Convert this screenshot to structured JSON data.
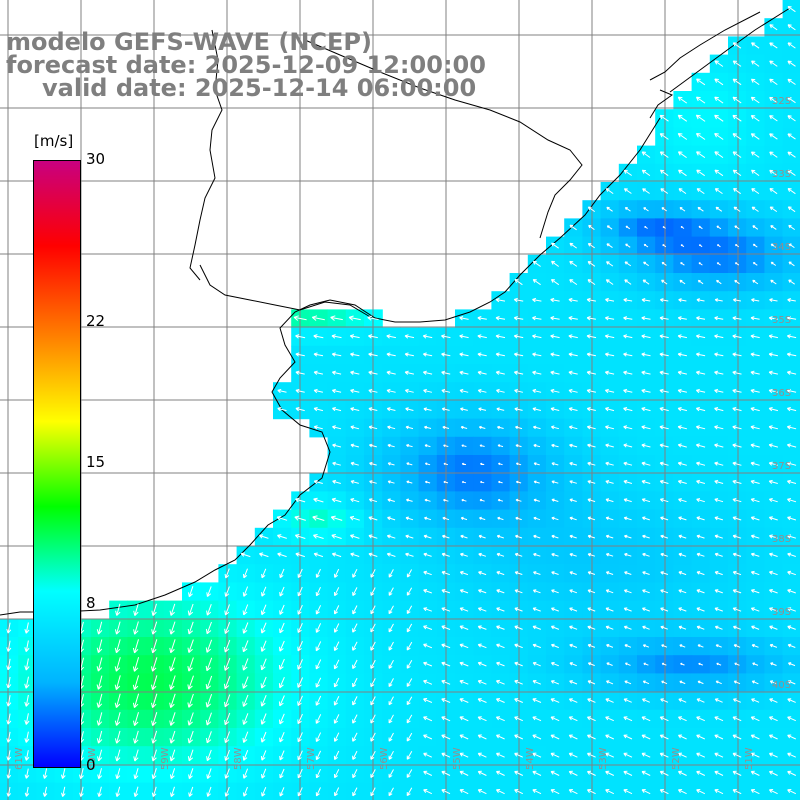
{
  "header": {
    "model": "modelo GEFS-WAVE (NCEP)",
    "forecast": "forecast date: 2025-12-09 12:00:00",
    "valid": "valid date: 2025-12-14 06:00:00"
  },
  "colorbar": {
    "units": "[m/s]",
    "min": 0,
    "max": 30,
    "ticks": [
      {
        "value": 30,
        "label": "30"
      },
      {
        "value": 22,
        "label": "22"
      },
      {
        "value": 15,
        "label": "15"
      },
      {
        "value": 8,
        "label": "8"
      },
      {
        "value": 0,
        "label": "0"
      }
    ],
    "colors": [
      "#0000ff",
      "#00b4ff",
      "#00ffff",
      "#00ff00",
      "#ffff00",
      "#ff8000",
      "#ff0000",
      "#c80080"
    ]
  },
  "lat_labels": [
    "32S",
    "33S",
    "34S",
    "35S",
    "36S",
    "37S",
    "38S",
    "39S",
    "40S"
  ],
  "lon_labels": [
    "61W",
    "60W",
    "59W",
    "58W",
    "57W",
    "56W",
    "55W",
    "54W",
    "53W",
    "52W",
    "51W"
  ],
  "map": {
    "land_color": "#ffffff",
    "grid_color": "#808080",
    "coast_color": "#000000",
    "arrow_color": "#ffffff"
  }
}
